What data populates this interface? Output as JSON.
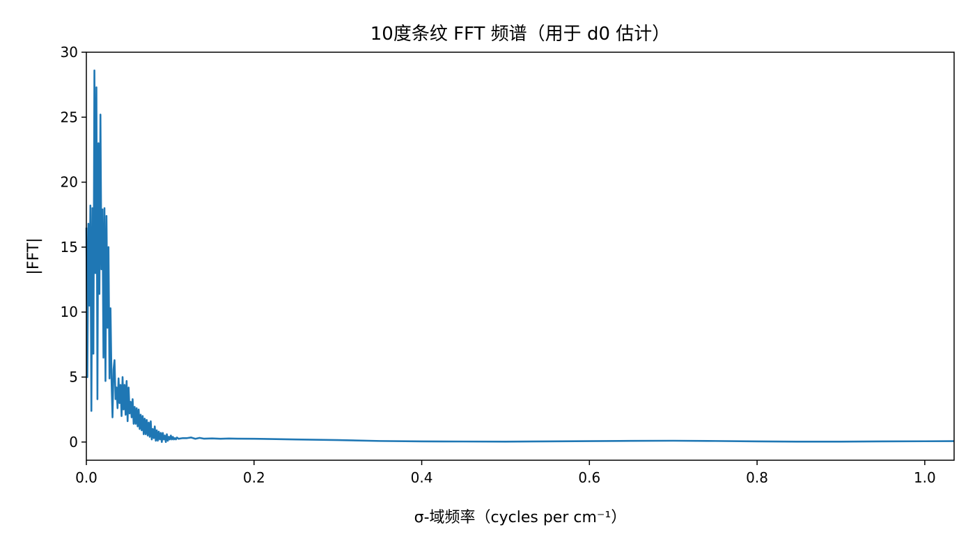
{
  "chart_data": {
    "type": "line",
    "title": "10度条纹 FFT 频谱（用于 d0 估计）",
    "xlabel": "σ-域频率（cycles per cm⁻¹）",
    "ylabel": "|FFT|",
    "xlim": [
      0.0,
      1.035
    ],
    "ylim": [
      -1.4,
      30
    ],
    "grid": false,
    "x_ticks": [
      0.0,
      0.2,
      0.4,
      0.6,
      0.8,
      1.0
    ],
    "x_tick_labels": [
      "0.0",
      "0.2",
      "0.4",
      "0.6",
      "0.8",
      "1.0"
    ],
    "y_ticks": [
      0,
      5,
      10,
      15,
      20,
      25,
      30
    ],
    "y_tick_labels": [
      "0",
      "5",
      "10",
      "15",
      "20",
      "25",
      "30"
    ],
    "series": [
      {
        "color": "#1f77b4",
        "x": [
          0.0,
          0.0012,
          0.0024,
          0.0036,
          0.0048,
          0.006,
          0.0072,
          0.0084,
          0.0096,
          0.0108,
          0.012,
          0.0132,
          0.0144,
          0.0156,
          0.0168,
          0.018,
          0.0192,
          0.0204,
          0.0216,
          0.0228,
          0.024,
          0.0252,
          0.0264,
          0.0276,
          0.0288,
          0.03,
          0.0312,
          0.0324,
          0.0336,
          0.0348,
          0.036,
          0.0372,
          0.0384,
          0.0396,
          0.0408,
          0.042,
          0.0432,
          0.0444,
          0.0456,
          0.0468,
          0.048,
          0.0492,
          0.0504,
          0.0516,
          0.0528,
          0.054,
          0.0552,
          0.0564,
          0.0576,
          0.0588,
          0.06,
          0.0612,
          0.0624,
          0.0636,
          0.0648,
          0.066,
          0.0672,
          0.0684,
          0.0696,
          0.0708,
          0.072,
          0.0732,
          0.0744,
          0.0756,
          0.0768,
          0.078,
          0.0792,
          0.0804,
          0.0816,
          0.0828,
          0.084,
          0.0852,
          0.0864,
          0.0876,
          0.0888,
          0.09,
          0.0912,
          0.0924,
          0.0936,
          0.0948,
          0.096,
          0.0972,
          0.0984,
          0.0996,
          0.1008,
          0.102,
          0.1032,
          0.1044,
          0.1056,
          0.1068,
          0.108,
          0.11,
          0.115,
          0.12,
          0.125,
          0.13,
          0.135,
          0.14,
          0.15,
          0.16,
          0.17,
          0.18,
          0.2,
          0.22,
          0.25,
          0.3,
          0.35,
          0.4,
          0.45,
          0.5,
          0.55,
          0.6,
          0.65,
          0.7,
          0.75,
          0.8,
          0.85,
          0.9,
          0.95,
          1.0,
          1.035
        ],
        "y": [
          16.5,
          5.0,
          16.8,
          10.5,
          18.2,
          2.4,
          18.0,
          6.8,
          28.6,
          13.0,
          27.3,
          3.3,
          23.0,
          11.4,
          25.2,
          13.3,
          17.9,
          6.5,
          18.0,
          4.7,
          17.4,
          8.8,
          15.0,
          4.9,
          10.3,
          4.8,
          1.9,
          5.6,
          6.3,
          3.3,
          4.2,
          2.6,
          4.9,
          3.0,
          4.4,
          2.0,
          5.0,
          2.5,
          4.4,
          2.1,
          4.7,
          1.6,
          4.2,
          2.2,
          3.1,
          1.9,
          3.3,
          1.4,
          2.7,
          1.4,
          2.6,
          1.2,
          2.5,
          1.0,
          2.1,
          0.9,
          2.0,
          0.6,
          1.8,
          0.6,
          1.7,
          0.5,
          1.5,
          0.4,
          1.6,
          0.2,
          1.0,
          0.3,
          1.2,
          0.1,
          0.9,
          0.1,
          0.8,
          0.2,
          0.7,
          0.0,
          0.7,
          0.2,
          0.5,
          0.0,
          0.6,
          0.1,
          0.4,
          0.2,
          0.5,
          0.2,
          0.4,
          0.2,
          0.3,
          0.2,
          0.35,
          0.25,
          0.3,
          0.3,
          0.35,
          0.25,
          0.32,
          0.26,
          0.28,
          0.25,
          0.27,
          0.26,
          0.25,
          0.23,
          0.2,
          0.15,
          0.08,
          0.05,
          0.04,
          0.03,
          0.05,
          0.07,
          0.09,
          0.1,
          0.08,
          0.05,
          0.03,
          0.03,
          0.05,
          0.06,
          0.07
        ]
      }
    ]
  }
}
